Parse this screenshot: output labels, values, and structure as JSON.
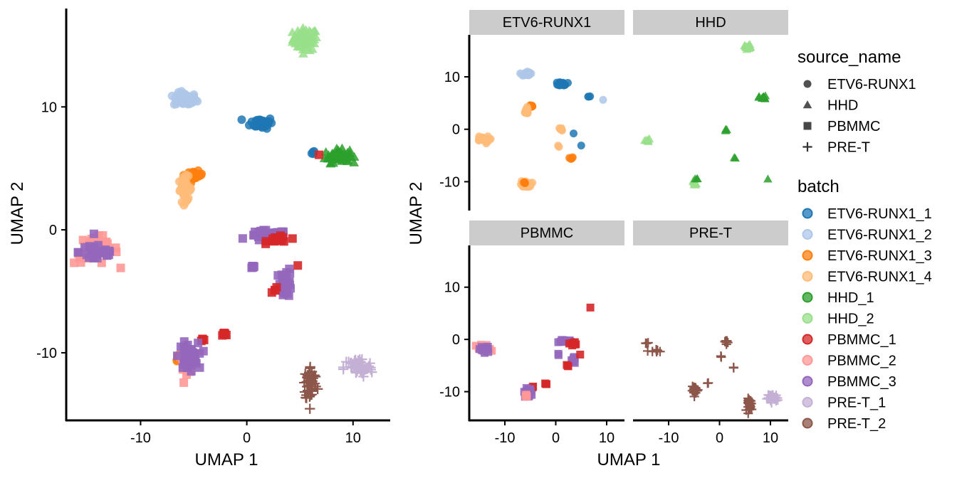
{
  "colors": {
    "ETV6-RUNX1_1": "#1f77b4",
    "ETV6-RUNX1_2": "#aec7e8",
    "ETV6-RUNX1_3": "#ff7f0e",
    "ETV6-RUNX1_4": "#ffbb78",
    "HHD_1": "#2ca02c",
    "HHD_2": "#98df8a",
    "PBMMC_1": "#d62728",
    "PBMMC_2": "#ff9896",
    "PBMMC_3": "#9467bd",
    "PRE-T_1": "#c5b0d5",
    "PRE-T_2": "#8c564b",
    "strip_bg": "#cccccc",
    "legend_shape": "#333333"
  },
  "left_plot": {
    "xlabel": "UMAP 1",
    "ylabel": "UMAP 2"
  },
  "right_plot": {
    "xlabel": "UMAP 1",
    "ylabel": "UMAP 2",
    "facets": [
      "ETV6-RUNX1",
      "HHD",
      "PBMMC",
      "PRE-T"
    ]
  },
  "legend": {
    "shape_title": "source_name",
    "shape_items": [
      {
        "label": "ETV6-RUNX1",
        "shape": "circle"
      },
      {
        "label": "HHD",
        "shape": "triangle"
      },
      {
        "label": "PBMMC",
        "shape": "square"
      },
      {
        "label": "PRE-T",
        "shape": "plus"
      }
    ],
    "color_title": "batch",
    "color_items": [
      "ETV6-RUNX1_1",
      "ETV6-RUNX1_2",
      "ETV6-RUNX1_3",
      "ETV6-RUNX1_4",
      "HHD_1",
      "HHD_2",
      "PBMMC_1",
      "PBMMC_2",
      "PBMMC_3",
      "PRE-T_1",
      "PRE-T_2"
    ]
  },
  "chart_data": [
    {
      "type": "scatter",
      "panel": "combined",
      "xlabel": "UMAP 1",
      "ylabel": "UMAP 2",
      "xlim": [
        -17,
        13.5
      ],
      "ylim": [
        -15.5,
        18
      ],
      "xticks": [
        -10,
        0,
        10
      ],
      "yticks": [
        -10,
        0,
        10
      ],
      "grid": false,
      "clusters": [
        {
          "batch": "HHD_2",
          "shape": "triangle",
          "x": 5.5,
          "y": 15.5,
          "rx": 1.3,
          "ry": 1.0,
          "n": 70
        },
        {
          "batch": "ETV6-RUNX1_2",
          "shape": "circle",
          "x": -5.8,
          "y": 10.6,
          "rx": 1.2,
          "ry": 0.6,
          "n": 60
        },
        {
          "batch": "ETV6-RUNX1_1",
          "shape": "circle",
          "x": 1.4,
          "y": 8.7,
          "rx": 1.2,
          "ry": 0.5,
          "n": 50
        },
        {
          "batch": "ETV6-RUNX1_1",
          "shape": "circle",
          "x": 6.3,
          "y": 6.3,
          "rx": 0.3,
          "ry": 0.2,
          "n": 4
        },
        {
          "batch": "HHD_1",
          "shape": "triangle",
          "x": 8.5,
          "y": 6.0,
          "rx": 1.3,
          "ry": 0.6,
          "n": 60
        },
        {
          "batch": "PBMMC_1",
          "shape": "square",
          "x": 6.8,
          "y": 6.1,
          "rx": 0.1,
          "ry": 0.1,
          "n": 1
        },
        {
          "batch": "ETV6-RUNX1_3",
          "shape": "circle",
          "x": -4.9,
          "y": 4.4,
          "rx": 0.8,
          "ry": 0.4,
          "n": 25
        },
        {
          "batch": "ETV6-RUNX1_4",
          "shape": "circle",
          "x": -5.8,
          "y": 3.3,
          "rx": 0.7,
          "ry": 1.1,
          "n": 40
        },
        {
          "batch": "PBMMC_2",
          "shape": "square",
          "x": -14.2,
          "y": -1.6,
          "rx": 2.3,
          "ry": 1.3,
          "n": 35
        },
        {
          "batch": "PBMMC_3",
          "shape": "square",
          "x": -14.0,
          "y": -1.8,
          "rx": 2.0,
          "ry": 1.0,
          "n": 30
        },
        {
          "batch": "PBMMC_3",
          "shape": "square",
          "x": 2.0,
          "y": -0.5,
          "rx": 2.0,
          "ry": 0.5,
          "n": 60
        },
        {
          "batch": "PBMMC_1",
          "shape": "square",
          "x": 3.0,
          "y": -0.8,
          "rx": 1.2,
          "ry": 0.3,
          "n": 18
        },
        {
          "batch": "PBMMC_3",
          "shape": "square",
          "x": 0.6,
          "y": -3.0,
          "rx": 0.2,
          "ry": 0.2,
          "n": 6
        },
        {
          "batch": "PBMMC_3",
          "shape": "square",
          "x": 3.7,
          "y": -4.3,
          "rx": 0.6,
          "ry": 1.3,
          "n": 30
        },
        {
          "batch": "PBMMC_1",
          "shape": "square",
          "x": 2.7,
          "y": -5.0,
          "rx": 0.4,
          "ry": 0.3,
          "n": 4
        },
        {
          "batch": "PBMMC_1",
          "shape": "square",
          "x": 4.8,
          "y": -2.9,
          "rx": 0.1,
          "ry": 0.1,
          "n": 1
        },
        {
          "batch": "PBMMC_1",
          "shape": "square",
          "x": -2.0,
          "y": -8.4,
          "rx": 0.4,
          "ry": 0.2,
          "n": 6
        },
        {
          "batch": "PBMMC_1",
          "shape": "square",
          "x": -4.2,
          "y": -9.0,
          "rx": 0.3,
          "ry": 0.2,
          "n": 4
        },
        {
          "batch": "ETV6-RUNX1_3",
          "shape": "circle",
          "x": -6.4,
          "y": -10.4,
          "rx": 0.3,
          "ry": 0.3,
          "n": 5
        },
        {
          "batch": "PBMMC_2",
          "shape": "square",
          "x": -5.7,
          "y": -10.8,
          "rx": 0.9,
          "ry": 0.9,
          "n": 20
        },
        {
          "batch": "PBMMC_3",
          "shape": "square",
          "x": -5.5,
          "y": -10.3,
          "rx": 1.0,
          "ry": 1.2,
          "n": 45
        },
        {
          "batch": "PRE-T_1",
          "shape": "plus",
          "x": 10.5,
          "y": -11.2,
          "rx": 1.5,
          "ry": 0.9,
          "n": 55
        },
        {
          "batch": "PRE-T_2",
          "shape": "plus",
          "x": 6.0,
          "y": -12.5,
          "rx": 0.7,
          "ry": 1.6,
          "n": 55
        }
      ]
    },
    {
      "type": "scatter",
      "panel": "facets",
      "xlabel": "UMAP 1",
      "ylabel": "UMAP 2",
      "xlim": [
        -17,
        13.5
      ],
      "ylim": [
        -15.5,
        18
      ],
      "xticks": [
        -10,
        0,
        10
      ],
      "yticks": [
        -10,
        0,
        10
      ],
      "grid": false,
      "facets": [
        {
          "name": "ETV6-RUNX1",
          "clusters": [
            {
              "batch": "ETV6-RUNX1_2",
              "shape": "circle",
              "x": -5.8,
              "y": 10.6,
              "rx": 0.9,
              "ry": 0.5,
              "n": 25
            },
            {
              "batch": "ETV6-RUNX1_1",
              "shape": "circle",
              "x": 1.4,
              "y": 8.7,
              "rx": 1.0,
              "ry": 0.4,
              "n": 20
            },
            {
              "batch": "ETV6-RUNX1_1",
              "shape": "circle",
              "x": 6.5,
              "y": 6.3,
              "rx": 0.3,
              "ry": 0.2,
              "n": 3
            },
            {
              "batch": "ETV6-RUNX1_2",
              "shape": "circle",
              "x": 9.3,
              "y": 5.6,
              "rx": 0.1,
              "ry": 0.1,
              "n": 1
            },
            {
              "batch": "ETV6-RUNX1_3",
              "shape": "circle",
              "x": -4.9,
              "y": 4.4,
              "rx": 0.5,
              "ry": 0.3,
              "n": 10
            },
            {
              "batch": "ETV6-RUNX1_4",
              "shape": "circle",
              "x": -5.8,
              "y": 3.4,
              "rx": 0.6,
              "ry": 0.8,
              "n": 18
            },
            {
              "batch": "ETV6-RUNX1_4",
              "shape": "circle",
              "x": -14.5,
              "y": -2.0,
              "rx": 1.6,
              "ry": 0.8,
              "n": 18
            },
            {
              "batch": "ETV6-RUNX1_4",
              "shape": "circle",
              "x": 1.0,
              "y": 0.0,
              "rx": 0.5,
              "ry": 0.3,
              "n": 8
            },
            {
              "batch": "ETV6-RUNX1_1",
              "shape": "circle",
              "x": 3.5,
              "y": -0.8,
              "rx": 0.1,
              "ry": 0.1,
              "n": 1
            },
            {
              "batch": "ETV6-RUNX1_4",
              "shape": "circle",
              "x": 0.5,
              "y": -3.2,
              "rx": 0.2,
              "ry": 0.2,
              "n": 2
            },
            {
              "batch": "ETV6-RUNX1_1",
              "shape": "circle",
              "x": 5.0,
              "y": -3.1,
              "rx": 0.1,
              "ry": 0.1,
              "n": 1
            },
            {
              "batch": "ETV6-RUNX1_3",
              "shape": "circle",
              "x": 3.0,
              "y": -5.5,
              "rx": 0.4,
              "ry": 0.3,
              "n": 4
            },
            {
              "batch": "ETV6-RUNX1_4",
              "shape": "circle",
              "x": -5.8,
              "y": -10.5,
              "rx": 1.2,
              "ry": 0.7,
              "n": 25
            },
            {
              "batch": "ETV6-RUNX1_3",
              "shape": "circle",
              "x": -6.2,
              "y": -10.3,
              "rx": 0.3,
              "ry": 0.3,
              "n": 4
            }
          ]
        },
        {
          "name": "HHD",
          "clusters": [
            {
              "batch": "HHD_2",
              "shape": "triangle",
              "x": 5.5,
              "y": 15.8,
              "rx": 0.7,
              "ry": 0.6,
              "n": 14
            },
            {
              "batch": "HHD_1",
              "shape": "triangle",
              "x": 8.5,
              "y": 6.0,
              "rx": 0.8,
              "ry": 0.4,
              "n": 14
            },
            {
              "batch": "HHD_2",
              "shape": "triangle",
              "x": -14.3,
              "y": -2.2,
              "rx": 1.3,
              "ry": 0.4,
              "n": 7
            },
            {
              "batch": "HHD_1",
              "shape": "triangle",
              "x": 1.3,
              "y": -0.3,
              "rx": 0.2,
              "ry": 0.6,
              "n": 3
            },
            {
              "batch": "HHD_1",
              "shape": "triangle",
              "x": 3.0,
              "y": -5.5,
              "rx": 0.2,
              "ry": 0.2,
              "n": 2
            },
            {
              "batch": "HHD_1",
              "shape": "triangle",
              "x": 9.5,
              "y": -9.5,
              "rx": 0.1,
              "ry": 0.1,
              "n": 1
            },
            {
              "batch": "HHD_2",
              "shape": "triangle",
              "x": -4.8,
              "y": -10.2,
              "rx": 0.8,
              "ry": 0.6,
              "n": 10
            },
            {
              "batch": "HHD_1",
              "shape": "triangle",
              "x": -4.5,
              "y": -9.5,
              "rx": 0.3,
              "ry": 0.3,
              "n": 3
            }
          ]
        },
        {
          "name": "PBMMC",
          "clusters": [
            {
              "batch": "PBMMC_2",
              "shape": "square",
              "x": -14.2,
              "y": -1.8,
              "rx": 1.6,
              "ry": 0.9,
              "n": 16
            },
            {
              "batch": "PBMMC_3",
              "shape": "square",
              "x": -14.0,
              "y": -2.0,
              "rx": 1.5,
              "ry": 0.8,
              "n": 14
            },
            {
              "batch": "PBMMC_1",
              "shape": "square",
              "x": 6.8,
              "y": 6.1,
              "rx": 0.1,
              "ry": 0.1,
              "n": 1
            },
            {
              "batch": "PBMMC_3",
              "shape": "square",
              "x": 2.0,
              "y": -0.3,
              "rx": 1.5,
              "ry": 0.4,
              "n": 20
            },
            {
              "batch": "PBMMC_1",
              "shape": "square",
              "x": 3.0,
              "y": -0.8,
              "rx": 1.0,
              "ry": 0.3,
              "n": 8
            },
            {
              "batch": "PBMMC_3",
              "shape": "square",
              "x": 0.6,
              "y": -2.8,
              "rx": 0.2,
              "ry": 0.2,
              "n": 2
            },
            {
              "batch": "PBMMC_3",
              "shape": "square",
              "x": 3.5,
              "y": -4.0,
              "rx": 0.5,
              "ry": 1.0,
              "n": 10
            },
            {
              "batch": "PBMMC_1",
              "shape": "square",
              "x": 2.5,
              "y": -5.0,
              "rx": 0.4,
              "ry": 0.2,
              "n": 3
            },
            {
              "batch": "PBMMC_1",
              "shape": "square",
              "x": 4.8,
              "y": -2.9,
              "rx": 0.1,
              "ry": 0.1,
              "n": 1
            },
            {
              "batch": "PBMMC_1",
              "shape": "square",
              "x": -2.0,
              "y": -8.5,
              "rx": 0.3,
              "ry": 0.2,
              "n": 3
            },
            {
              "batch": "PBMMC_1",
              "shape": "square",
              "x": -4.5,
              "y": -9.0,
              "rx": 0.2,
              "ry": 0.2,
              "n": 2
            },
            {
              "batch": "PBMMC_3",
              "shape": "square",
              "x": -5.5,
              "y": -10.2,
              "rx": 0.8,
              "ry": 0.9,
              "n": 22
            },
            {
              "batch": "PBMMC_2",
              "shape": "square",
              "x": -5.8,
              "y": -10.8,
              "rx": 0.5,
              "ry": 0.5,
              "n": 6
            }
          ]
        },
        {
          "name": "PRE-T",
          "clusters": [
            {
              "batch": "PRE-T_2",
              "shape": "plus",
              "x": -14.5,
              "y": -0.8,
              "rx": 0.4,
              "ry": 0.3,
              "n": 3
            },
            {
              "batch": "PRE-T_2",
              "shape": "plus",
              "x": -12.5,
              "y": -2.3,
              "rx": 1.2,
              "ry": 0.5,
              "n": 7
            },
            {
              "batch": "PRE-T_2",
              "shape": "plus",
              "x": 1.3,
              "y": -0.4,
              "rx": 0.8,
              "ry": 0.5,
              "n": 8
            },
            {
              "batch": "PRE-T_2",
              "shape": "plus",
              "x": 0.3,
              "y": -3.2,
              "rx": 0.2,
              "ry": 0.2,
              "n": 2
            },
            {
              "batch": "PRE-T_2",
              "shape": "plus",
              "x": 2.8,
              "y": -5.4,
              "rx": 0.2,
              "ry": 0.2,
              "n": 2
            },
            {
              "batch": "PRE-T_2",
              "shape": "plus",
              "x": -2.3,
              "y": -8.3,
              "rx": 0.2,
              "ry": 0.2,
              "n": 2
            },
            {
              "batch": "PRE-T_2",
              "shape": "plus",
              "x": -4.8,
              "y": -9.8,
              "rx": 0.7,
              "ry": 0.8,
              "n": 18
            },
            {
              "batch": "PRE-T_1",
              "shape": "plus",
              "x": 10.5,
              "y": -11.2,
              "rx": 1.2,
              "ry": 0.8,
              "n": 30
            },
            {
              "batch": "PRE-T_2",
              "shape": "plus",
              "x": 6.0,
              "y": -12.5,
              "rx": 0.6,
              "ry": 1.3,
              "n": 25
            }
          ]
        }
      ]
    }
  ]
}
